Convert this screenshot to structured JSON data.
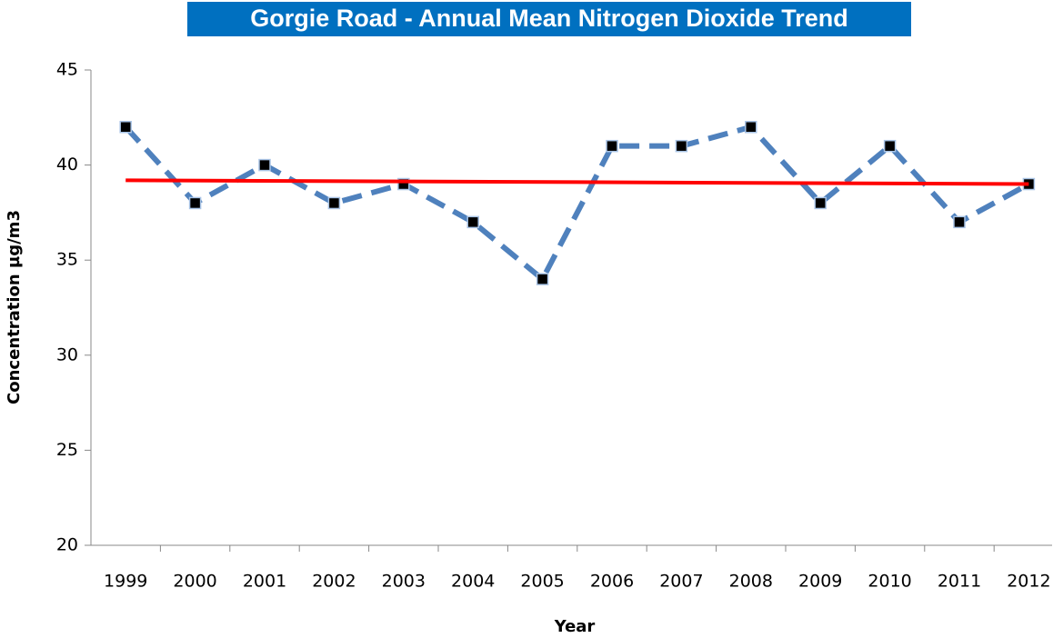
{
  "chart_data": {
    "type": "line",
    "title": "Gorgie Road - Annual Mean Nitrogen Dioxide Trend",
    "x_label": "Year",
    "y_label": "Concentration µg/m3",
    "categories": [
      "1999",
      "2000",
      "2001",
      "2002",
      "2003",
      "2004",
      "2005",
      "2006",
      "2007",
      "2008",
      "2009",
      "2010",
      "2011",
      "2012"
    ],
    "series": [
      {
        "color": "#4f81bd",
        "marker_color": "#000000",
        "values": [
          42,
          38,
          40,
          38,
          39,
          37,
          34,
          41,
          41,
          42,
          38,
          41,
          37,
          39
        ]
      }
    ],
    "trendline": {
      "color": "#ff0000",
      "values": [
        39.2,
        39.0
      ]
    },
    "ylim": [
      20,
      45
    ],
    "yticks": [
      20,
      25,
      30,
      35,
      40,
      45
    ],
    "grid": false
  }
}
